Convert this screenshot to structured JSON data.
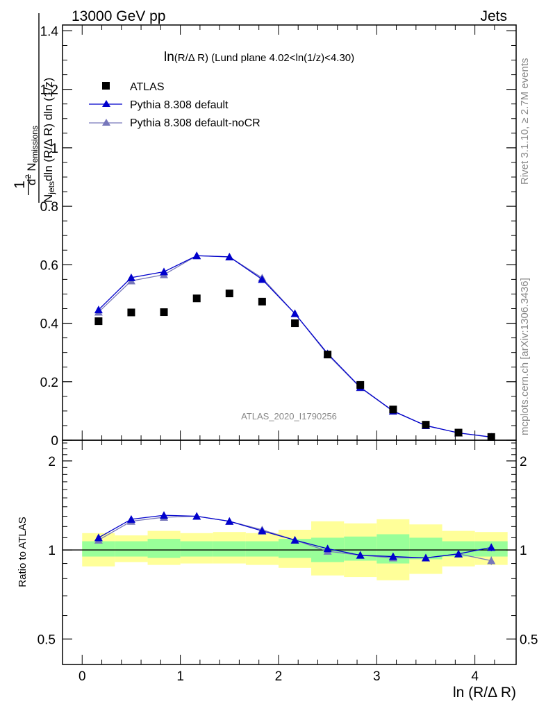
{
  "header": {
    "left": "13000 GeV pp",
    "right": "Jets"
  },
  "side_labels": {
    "rivet": "Rivet 3.1.10, ≥ 2.7M events",
    "mcplots": "mcplots.cern.ch [arXiv:1306.3436]"
  },
  "chart_data": [
    {
      "type": "scatter",
      "panel": "main",
      "title_main": "ln",
      "title_small": "(R/Δ R)",
      "title_rest": " (Lund plane 4.02<ln(1/z)<4.30)",
      "watermark": "ATLAS_2020_I1790256",
      "ylabel": "1/N_jets dN_emissions / dln(R/ΔR) dln(1/z)",
      "ylabel_parts": {
        "frac_num": "1",
        "num_prefix": "d",
        "num_sup": "2",
        "num_main": " N",
        "num_sub": "emissions",
        "den_n": "N",
        "den_sub": "jets",
        "den_rest": "dln (R/Δ R) dln (1/z)"
      },
      "xlim": [
        -0.2,
        4.42
      ],
      "ylim": [
        0,
        1.42
      ],
      "yticks": [
        {
          "v": 0,
          "label": "0"
        },
        {
          "v": 0.2,
          "label": "0.2"
        },
        {
          "v": 0.4,
          "label": "0.4"
        },
        {
          "v": 0.6,
          "label": "0.6"
        },
        {
          "v": 0.8,
          "label": "0.8"
        },
        {
          "v": 1.0,
          "label": "1"
        },
        {
          "v": 1.2,
          "label": "1.2"
        },
        {
          "v": 1.4,
          "label": "1.4"
        }
      ],
      "x": [
        0.167,
        0.5,
        0.833,
        1.167,
        1.5,
        1.833,
        2.167,
        2.5,
        2.833,
        3.167,
        3.5,
        3.833,
        4.167
      ],
      "series": [
        {
          "name": "ATLAS",
          "marker": "square",
          "color": "#000000",
          "values": [
            0.407,
            0.437,
            0.438,
            0.485,
            0.502,
            0.474,
            0.4,
            0.293,
            0.189,
            0.105,
            0.053,
            0.026,
            0.011
          ]
        },
        {
          "name": "Pythia 8.308 default",
          "marker": "triangle",
          "color": "#0000cc",
          "values": [
            0.446,
            0.556,
            0.576,
            0.631,
            0.627,
            0.55,
            0.433,
            0.296,
            0.181,
            0.1,
            0.05,
            0.025,
            0.011
          ]
        },
        {
          "name": "Pythia 8.308 default-noCR",
          "marker": "triangle",
          "color": "#7777bb",
          "values": [
            0.438,
            0.545,
            0.566,
            0.631,
            0.627,
            0.555,
            0.433,
            0.293,
            0.18,
            0.099,
            0.05,
            0.025,
            0.01
          ]
        }
      ]
    },
    {
      "type": "line",
      "panel": "ratio",
      "ylabel": "Ratio to ATLAS",
      "xlabel": "ln (R/Δ R)",
      "xlim": [
        -0.2,
        4.42
      ],
      "ylim": [
        0.41,
        2.35
      ],
      "log_y": true,
      "yticks": [
        {
          "v": 0.5,
          "label": "0.5"
        },
        {
          "v": 1.0,
          "label": "1"
        },
        {
          "v": 2.0,
          "label": "2"
        }
      ],
      "xticks": [
        {
          "v": 0,
          "label": "0"
        },
        {
          "v": 1,
          "label": "1"
        },
        {
          "v": 2,
          "label": "2"
        },
        {
          "v": 3,
          "label": "3"
        },
        {
          "v": 4,
          "label": "4"
        }
      ],
      "bins": [
        [
          0,
          0.333
        ],
        [
          0.333,
          0.667
        ],
        [
          0.667,
          1.0
        ],
        [
          1.0,
          1.333
        ],
        [
          1.333,
          1.667
        ],
        [
          1.667,
          2.0
        ],
        [
          2.0,
          2.333
        ],
        [
          2.333,
          2.667
        ],
        [
          2.667,
          3.0
        ],
        [
          3.0,
          3.333
        ],
        [
          3.333,
          3.667
        ],
        [
          3.667,
          4.0
        ],
        [
          4.0,
          4.333
        ]
      ],
      "band_yellow": [
        [
          0.88,
          1.14
        ],
        [
          0.91,
          1.12
        ],
        [
          0.89,
          1.16
        ],
        [
          0.9,
          1.14
        ],
        [
          0.9,
          1.15
        ],
        [
          0.89,
          1.14
        ],
        [
          0.87,
          1.17
        ],
        [
          0.82,
          1.25
        ],
        [
          0.81,
          1.23
        ],
        [
          0.79,
          1.27
        ],
        [
          0.83,
          1.22
        ],
        [
          0.88,
          1.16
        ],
        [
          0.89,
          1.15
        ]
      ],
      "band_green": [
        [
          0.95,
          1.07
        ],
        [
          0.95,
          1.07
        ],
        [
          0.94,
          1.09
        ],
        [
          0.95,
          1.07
        ],
        [
          0.95,
          1.07
        ],
        [
          0.95,
          1.07
        ],
        [
          0.94,
          1.09
        ],
        [
          0.91,
          1.1
        ],
        [
          0.92,
          1.11
        ],
        [
          0.9,
          1.13
        ],
        [
          0.93,
          1.1
        ],
        [
          0.95,
          1.07
        ],
        [
          0.95,
          1.07
        ]
      ],
      "x": [
        0.167,
        0.5,
        0.833,
        1.167,
        1.5,
        1.833,
        2.167,
        2.5,
        2.833,
        3.167,
        3.5,
        3.833,
        4.167
      ],
      "series": [
        {
          "name": "Pythia 8.308 default",
          "color": "#0000cc",
          "values": [
            1.1,
            1.27,
            1.31,
            1.3,
            1.25,
            1.16,
            1.08,
            1.01,
            0.96,
            0.95,
            0.94,
            0.97,
            1.02
          ],
          "errors": [
            0.015,
            0.012,
            0.012,
            0.012,
            0.012,
            0.012,
            0.012,
            0.012,
            0.012,
            0.012,
            0.015,
            0.02,
            0.03
          ]
        },
        {
          "name": "Pythia 8.308 default-noCR",
          "color": "#7777bb",
          "values": [
            1.08,
            1.25,
            1.29,
            1.3,
            1.25,
            1.17,
            1.08,
            0.99,
            0.96,
            0.94,
            0.94,
            0.97,
            0.92
          ],
          "errors": [
            0.015,
            0.012,
            0.012,
            0.012,
            0.012,
            0.012,
            0.012,
            0.012,
            0.012,
            0.012,
            0.015,
            0.02,
            0.03
          ]
        }
      ]
    }
  ]
}
